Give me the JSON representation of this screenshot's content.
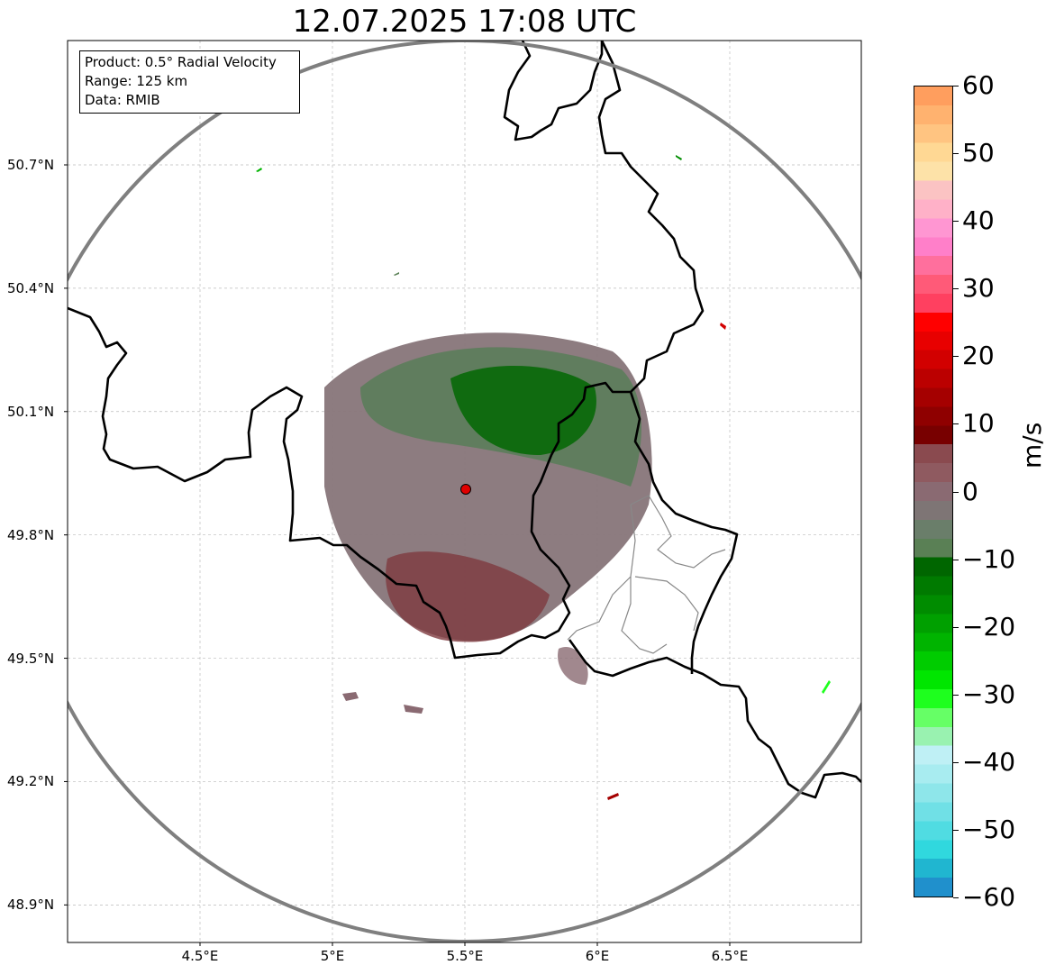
{
  "title": "12.07.2025 17:08 UTC",
  "info_box": {
    "product": "Product: 0.5° Radial Velocity",
    "range": "Range: 125 km",
    "data_source": "Data: RMIB"
  },
  "axes": {
    "y_ticks": [
      {
        "value": 50.7,
        "label": "50.7°N"
      },
      {
        "value": 50.4,
        "label": "50.4°N"
      },
      {
        "value": 50.1,
        "label": "50.1°N"
      },
      {
        "value": 49.8,
        "label": "49.8°N"
      },
      {
        "value": 49.5,
        "label": "49.5°N"
      },
      {
        "value": 49.2,
        "label": "49.2°N"
      },
      {
        "value": 48.9,
        "label": "48.9°N"
      }
    ],
    "x_ticks": [
      {
        "value": 4.5,
        "label": "4.5°E"
      },
      {
        "value": 5.0,
        "label": "5°E"
      },
      {
        "value": 5.5,
        "label": "5.5°E"
      },
      {
        "value": 6.0,
        "label": "6°E"
      },
      {
        "value": 6.5,
        "label": "6.5°E"
      }
    ],
    "lon_range": [
      4.0,
      7.0
    ],
    "lat_range": [
      48.8,
      50.95
    ],
    "grid": true
  },
  "radar_site": {
    "lon": 5.5,
    "lat": 49.91
  },
  "colorbar": {
    "unit": "m/s",
    "min": -60,
    "max": 60,
    "tick_labels": [
      "60",
      "50",
      "40",
      "30",
      "20",
      "10",
      "0",
      "−10",
      "−20",
      "−30",
      "−40",
      "−50",
      "−60"
    ],
    "colors": [
      "#ff9e5e",
      "#ffb26f",
      "#ffc481",
      "#ffd894",
      "#fde2a8",
      "#fbc3c3",
      "#ffb1c8",
      "#ff96d2",
      "#ff7fc9",
      "#ff6f9d",
      "#ff5a78",
      "#ff4060",
      "#ff0000",
      "#e80000",
      "#d20000",
      "#bb0000",
      "#a50000",
      "#8f0000",
      "#780000",
      "#8a4a4f",
      "#8f5a60",
      "#8a6a72",
      "#7e7575",
      "#6a7e6a",
      "#5a8055",
      "#006600",
      "#007a00",
      "#008c00",
      "#00a000",
      "#00b400",
      "#00cc00",
      "#00e600",
      "#1eff1e",
      "#66ff66",
      "#99f2b0",
      "#bff0f5",
      "#a8ecf0",
      "#8ee6ea",
      "#70e0e6",
      "#50dce2",
      "#30d8de",
      "#20b6d0",
      "#2090cc"
    ]
  }
}
